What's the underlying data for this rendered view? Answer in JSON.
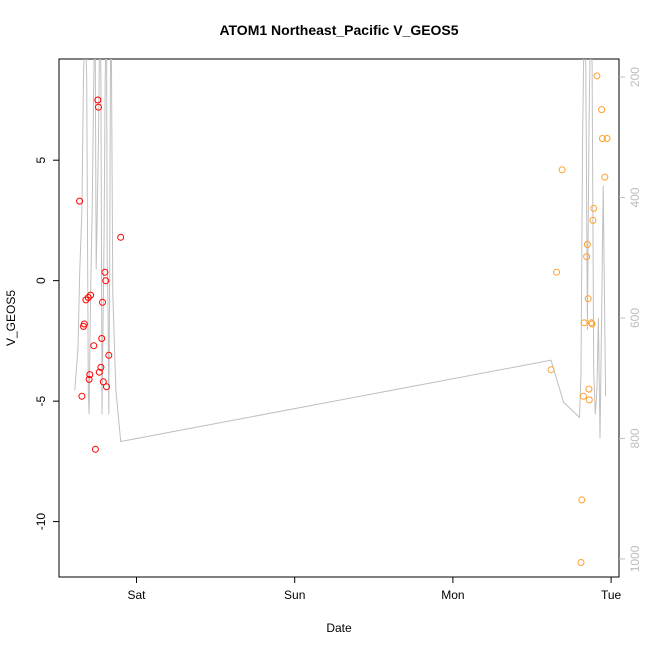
{
  "chart_data": {
    "type": "scatter",
    "title": "ATOM1 Northeast_Pacific V_GEOS5",
    "xlabel": "Date",
    "ylabel": "V_GEOS5",
    "x_unit": "days",
    "xlim": [
      -0.49,
      3.05
    ],
    "ylim": [
      -12.3,
      9.2
    ],
    "right_axis_lim": [
      1030,
      170
    ],
    "x_ticks": [
      {
        "value": 0,
        "label": "Sat"
      },
      {
        "value": 1,
        "label": "Sun"
      },
      {
        "value": 2,
        "label": "Mon"
      },
      {
        "value": 3,
        "label": "Tue"
      }
    ],
    "y_ticks": [
      {
        "value": -10,
        "label": "-10"
      },
      {
        "value": -5,
        "label": "-5"
      },
      {
        "value": 0,
        "label": "0"
      },
      {
        "value": 5,
        "label": "5"
      }
    ],
    "right_ticks": [
      {
        "value": 200,
        "label": "200"
      },
      {
        "value": 400,
        "label": "400"
      },
      {
        "value": 600,
        "label": "600"
      },
      {
        "value": 800,
        "label": "800"
      },
      {
        "value": 1000,
        "label": "1000"
      }
    ],
    "colors": {
      "series_red": "#ff0000",
      "series_orange": "#ffa030",
      "pressure_line": "#c0c0c0",
      "axis": "#000000",
      "right_axis": "#bdbdbd"
    },
    "series": [
      {
        "color": "#ff0000",
        "points": [
          [
            -0.36,
            3.3
          ],
          [
            -0.345,
            -4.8
          ],
          [
            -0.335,
            -1.9
          ],
          [
            -0.33,
            -1.8
          ],
          [
            -0.32,
            -0.8
          ],
          [
            -0.305,
            -0.7
          ],
          [
            -0.3,
            -4.1
          ],
          [
            -0.295,
            -3.9
          ],
          [
            -0.29,
            -0.6
          ],
          [
            -0.27,
            -2.7
          ],
          [
            -0.26,
            -7.0
          ],
          [
            -0.245,
            7.5
          ],
          [
            -0.24,
            7.2
          ],
          [
            -0.235,
            -3.8
          ],
          [
            -0.225,
            -3.6
          ],
          [
            -0.22,
            -2.4
          ],
          [
            -0.215,
            -0.9
          ],
          [
            -0.21,
            -4.2
          ],
          [
            -0.2,
            0.35
          ],
          [
            -0.195,
            0
          ],
          [
            -0.19,
            -4.4
          ],
          [
            -0.175,
            -3.1
          ],
          [
            -0.1,
            1.8
          ]
        ]
      },
      {
        "color": "#ffa030",
        "points": [
          [
            2.62,
            -3.7
          ],
          [
            2.655,
            0.35
          ],
          [
            2.69,
            4.6
          ],
          [
            2.81,
            -11.7
          ],
          [
            2.815,
            -9.1
          ],
          [
            2.825,
            -4.8
          ],
          [
            2.83,
            -1.75
          ],
          [
            2.845,
            1.0
          ],
          [
            2.85,
            1.5
          ],
          [
            2.855,
            -0.75
          ],
          [
            2.86,
            -4.5
          ],
          [
            2.862,
            -4.95
          ],
          [
            2.875,
            -1.75
          ],
          [
            2.88,
            -1.8
          ],
          [
            2.885,
            2.5
          ],
          [
            2.89,
            3.0
          ],
          [
            2.91,
            8.5
          ],
          [
            2.94,
            7.1
          ],
          [
            2.945,
            5.9
          ],
          [
            2.96,
            4.3
          ],
          [
            2.975,
            5.9
          ]
        ]
      }
    ],
    "pressure_line": [
      [
        -0.39,
        720
      ],
      [
        -0.37,
        650
      ],
      [
        -0.36,
        530
      ],
      [
        -0.345,
        420
      ],
      [
        -0.335,
        200
      ],
      [
        -0.325,
        100
      ],
      [
        -0.315,
        200
      ],
      [
        -0.305,
        720
      ],
      [
        -0.3,
        760
      ],
      [
        -0.29,
        560
      ],
      [
        -0.28,
        420
      ],
      [
        -0.27,
        200
      ],
      [
        -0.262,
        100
      ],
      [
        -0.255,
        520
      ],
      [
        -0.248,
        420
      ],
      [
        -0.24,
        300
      ],
      [
        -0.232,
        100
      ],
      [
        -0.225,
        200
      ],
      [
        -0.218,
        760
      ],
      [
        -0.212,
        620
      ],
      [
        -0.205,
        460
      ],
      [
        -0.198,
        200
      ],
      [
        -0.19,
        100
      ],
      [
        -0.185,
        500
      ],
      [
        -0.18,
        580
      ],
      [
        -0.175,
        760
      ],
      [
        -0.17,
        550
      ],
      [
        -0.165,
        200
      ],
      [
        -0.16,
        100
      ],
      [
        -0.15,
        560
      ],
      [
        -0.13,
        720
      ],
      [
        -0.1,
        805
      ],
      [
        2.62,
        670
      ],
      [
        2.7,
        740
      ],
      [
        2.8,
        765
      ],
      [
        2.81,
        690
      ],
      [
        2.82,
        300
      ],
      [
        2.83,
        100
      ],
      [
        2.84,
        180
      ],
      [
        2.85,
        620
      ],
      [
        2.86,
        300
      ],
      [
        2.87,
        100
      ],
      [
        2.88,
        180
      ],
      [
        2.89,
        690
      ],
      [
        2.9,
        760
      ],
      [
        2.91,
        720
      ],
      [
        2.92,
        600
      ],
      [
        2.93,
        800
      ],
      [
        2.94,
        600
      ],
      [
        2.95,
        380
      ],
      [
        2.965,
        730
      ]
    ]
  }
}
